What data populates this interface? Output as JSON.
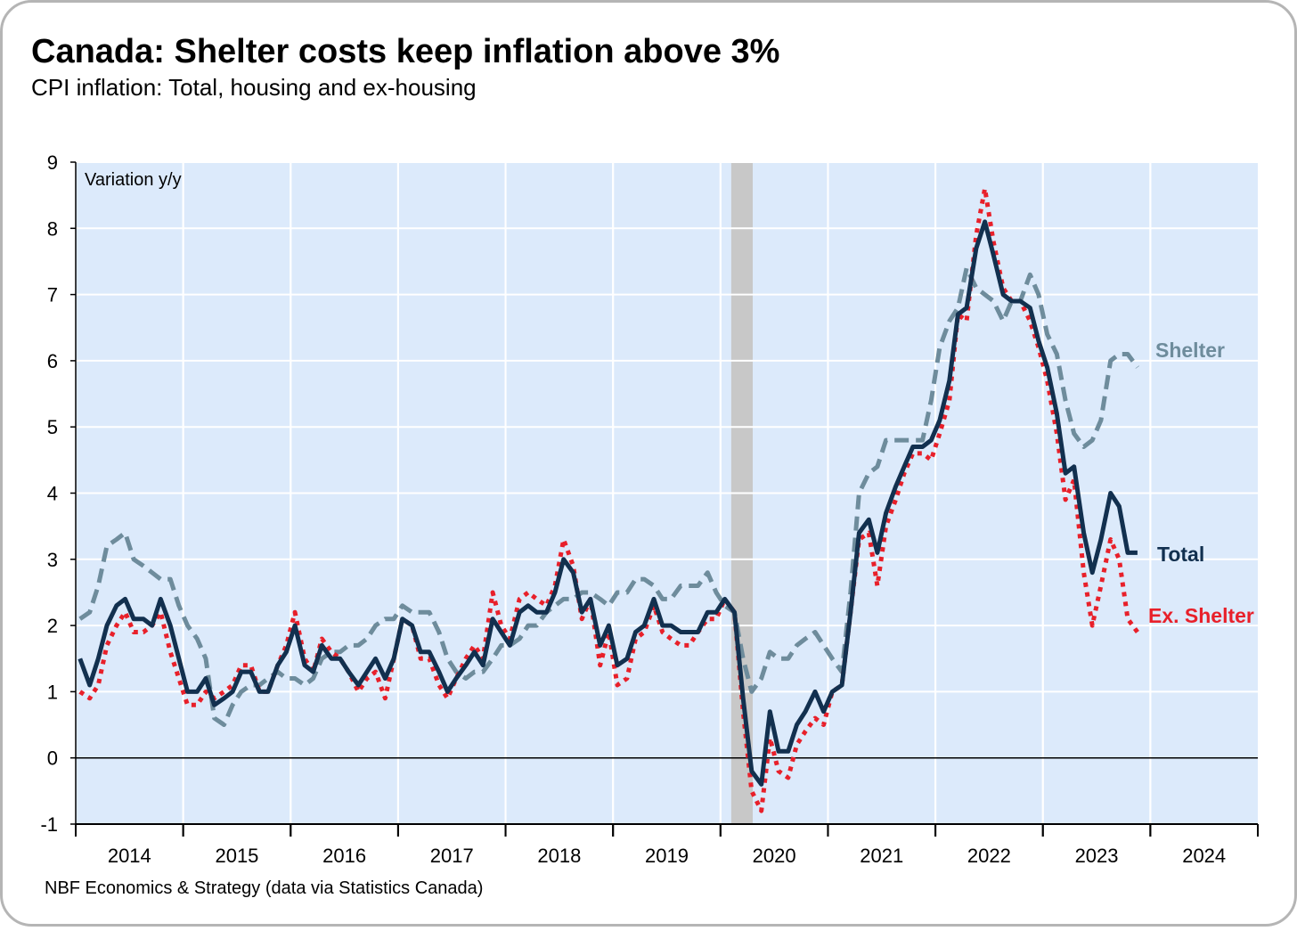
{
  "chart_data": {
    "type": "line",
    "title": "Canada: Shelter costs keep inflation above 3%",
    "subtitle": "CPI inflation: Total, housing and ex-housing",
    "y_axis_label": "Variation y/y",
    "source": "NBF Economics & Strategy (data via Statistics Canada)",
    "xlim": [
      2014,
      2025
    ],
    "xticks": [
      {
        "value": 2014.5,
        "label": "2014"
      },
      {
        "value": 2015.5,
        "label": "2015"
      },
      {
        "value": 2016.5,
        "label": "2016"
      },
      {
        "value": 2017.5,
        "label": "2017"
      },
      {
        "value": 2018.5,
        "label": "2018"
      },
      {
        "value": 2019.5,
        "label": "2019"
      },
      {
        "value": 2020.5,
        "label": "2020"
      },
      {
        "value": 2021.5,
        "label": "2021"
      },
      {
        "value": 2022.5,
        "label": "2022"
      },
      {
        "value": 2023.5,
        "label": "2023"
      },
      {
        "value": 2024.5,
        "label": "2024"
      }
    ],
    "ylim": [
      -1,
      9
    ],
    "yticks": [
      -1,
      0,
      1,
      2,
      3,
      4,
      5,
      6,
      7,
      8,
      9
    ],
    "grid": true,
    "shaded_ranges": [
      [
        2020.1,
        2020.3
      ]
    ],
    "x": [
      2014.04,
      2014.13,
      2014.21,
      2014.29,
      2014.38,
      2014.46,
      2014.54,
      2014.63,
      2014.71,
      2014.79,
      2014.88,
      2014.96,
      2015.04,
      2015.13,
      2015.21,
      2015.29,
      2015.38,
      2015.46,
      2015.54,
      2015.63,
      2015.71,
      2015.79,
      2015.88,
      2015.96,
      2016.04,
      2016.13,
      2016.21,
      2016.29,
      2016.38,
      2016.46,
      2016.54,
      2016.63,
      2016.71,
      2016.79,
      2016.88,
      2016.96,
      2017.04,
      2017.13,
      2017.21,
      2017.29,
      2017.38,
      2017.46,
      2017.54,
      2017.63,
      2017.71,
      2017.79,
      2017.88,
      2017.96,
      2018.04,
      2018.13,
      2018.21,
      2018.29,
      2018.38,
      2018.46,
      2018.54,
      2018.63,
      2018.71,
      2018.79,
      2018.88,
      2018.96,
      2019.04,
      2019.13,
      2019.21,
      2019.29,
      2019.38,
      2019.46,
      2019.54,
      2019.63,
      2019.71,
      2019.79,
      2019.88,
      2019.96,
      2020.04,
      2020.13,
      2020.21,
      2020.29,
      2020.38,
      2020.46,
      2020.54,
      2020.63,
      2020.71,
      2020.79,
      2020.88,
      2020.96,
      2021.04,
      2021.13,
      2021.21,
      2021.29,
      2021.38,
      2021.46,
      2021.54,
      2021.63,
      2021.71,
      2021.79,
      2021.88,
      2021.96,
      2022.04,
      2022.13,
      2022.21,
      2022.29,
      2022.38,
      2022.46,
      2022.54,
      2022.63,
      2022.71,
      2022.79,
      2022.88,
      2022.96,
      2023.04,
      2023.13,
      2023.21,
      2023.29,
      2023.38,
      2023.46,
      2023.54,
      2023.63,
      2023.71,
      2023.79,
      2023.88
    ],
    "series": [
      {
        "name": "Total",
        "color": "#12304f",
        "dash": "solid",
        "values": [
          1.5,
          1.1,
          1.5,
          2.0,
          2.3,
          2.4,
          2.1,
          2.1,
          2.0,
          2.4,
          2.0,
          1.5,
          1.0,
          1.0,
          1.2,
          0.8,
          0.9,
          1.0,
          1.3,
          1.3,
          1.0,
          1.0,
          1.4,
          1.6,
          2.0,
          1.4,
          1.3,
          1.7,
          1.5,
          1.5,
          1.3,
          1.1,
          1.3,
          1.5,
          1.2,
          1.5,
          2.1,
          2.0,
          1.6,
          1.6,
          1.3,
          1.0,
          1.2,
          1.4,
          1.6,
          1.4,
          2.1,
          1.9,
          1.7,
          2.2,
          2.3,
          2.2,
          2.2,
          2.5,
          3.0,
          2.8,
          2.2,
          2.4,
          1.7,
          2.0,
          1.4,
          1.5,
          1.9,
          2.0,
          2.4,
          2.0,
          2.0,
          1.9,
          1.9,
          1.9,
          2.2,
          2.2,
          2.4,
          2.2,
          0.9,
          -0.2,
          -0.4,
          0.7,
          0.1,
          0.1,
          0.5,
          0.7,
          1.0,
          0.7,
          1.0,
          1.1,
          2.2,
          3.4,
          3.6,
          3.1,
          3.7,
          4.1,
          4.4,
          4.7,
          4.7,
          4.8,
          5.1,
          5.7,
          6.7,
          6.8,
          7.7,
          8.1,
          7.6,
          7.0,
          6.9,
          6.9,
          6.8,
          6.3,
          5.9,
          5.2,
          4.3,
          4.4,
          3.4,
          2.8,
          3.3,
          4.0,
          3.8,
          3.1,
          3.1
        ]
      },
      {
        "name": "Shelter",
        "color": "#6e8c9c",
        "dash": "dashed",
        "values": [
          2.1,
          2.2,
          2.6,
          3.2,
          3.3,
          3.4,
          3.0,
          2.9,
          2.8,
          2.7,
          2.7,
          2.3,
          2.0,
          1.8,
          1.5,
          0.6,
          0.5,
          0.8,
          1.0,
          1.1,
          1.1,
          1.2,
          1.3,
          1.2,
          1.2,
          1.1,
          1.2,
          1.5,
          1.6,
          1.6,
          1.7,
          1.7,
          1.8,
          2.0,
          2.1,
          2.1,
          2.3,
          2.2,
          2.2,
          2.2,
          1.9,
          1.5,
          1.3,
          1.2,
          1.3,
          1.3,
          1.5,
          1.7,
          1.7,
          1.8,
          2.0,
          2.0,
          2.2,
          2.3,
          2.4,
          2.4,
          2.5,
          2.5,
          2.4,
          2.3,
          2.5,
          2.5,
          2.7,
          2.7,
          2.6,
          2.4,
          2.4,
          2.6,
          2.6,
          2.6,
          2.8,
          2.5,
          2.3,
          2.2,
          1.5,
          1.0,
          1.2,
          1.6,
          1.5,
          1.5,
          1.7,
          1.8,
          1.9,
          1.7,
          1.5,
          1.3,
          2.5,
          4.0,
          4.3,
          4.4,
          4.8,
          4.8,
          4.8,
          4.8,
          4.8,
          5.4,
          6.2,
          6.6,
          6.8,
          7.4,
          7.1,
          7.0,
          6.9,
          6.6,
          6.9,
          6.9,
          7.3,
          7.0,
          6.4,
          6.1,
          5.4,
          4.9,
          4.7,
          4.8,
          5.1,
          6.0,
          6.1,
          6.1,
          5.9
        ]
      },
      {
        "name": "Ex. Shelter",
        "color": "#e8202a",
        "dash": "dotted",
        "values": [
          1.0,
          0.9,
          1.1,
          1.7,
          2.0,
          2.2,
          1.9,
          1.9,
          2.0,
          2.2,
          1.6,
          1.2,
          0.8,
          0.8,
          1.0,
          0.9,
          1.0,
          1.1,
          1.4,
          1.4,
          1.0,
          1.0,
          1.4,
          1.7,
          2.2,
          1.5,
          1.3,
          1.8,
          1.6,
          1.5,
          1.3,
          1.0,
          1.2,
          1.3,
          0.9,
          1.5,
          2.1,
          2.0,
          1.5,
          1.5,
          1.1,
          0.9,
          1.2,
          1.5,
          1.7,
          1.5,
          2.5,
          2.0,
          1.8,
          2.4,
          2.5,
          2.4,
          2.3,
          2.6,
          3.3,
          2.9,
          2.1,
          2.4,
          1.4,
          1.9,
          1.1,
          1.2,
          1.8,
          1.9,
          2.3,
          1.9,
          1.8,
          1.7,
          1.7,
          1.9,
          2.1,
          2.1,
          2.4,
          2.2,
          0.7,
          -0.5,
          -0.8,
          0.3,
          -0.2,
          -0.3,
          0.2,
          0.4,
          0.6,
          0.5,
          1.0,
          1.1,
          2.2,
          3.3,
          3.4,
          2.6,
          3.5,
          3.9,
          4.3,
          4.6,
          4.6,
          4.5,
          4.9,
          5.4,
          6.7,
          6.6,
          7.9,
          8.6,
          7.8,
          7.1,
          6.9,
          6.9,
          6.6,
          6.2,
          5.7,
          4.9,
          3.9,
          4.2,
          2.8,
          2.0,
          2.6,
          3.3,
          3.0,
          2.1,
          1.9
        ]
      }
    ]
  }
}
